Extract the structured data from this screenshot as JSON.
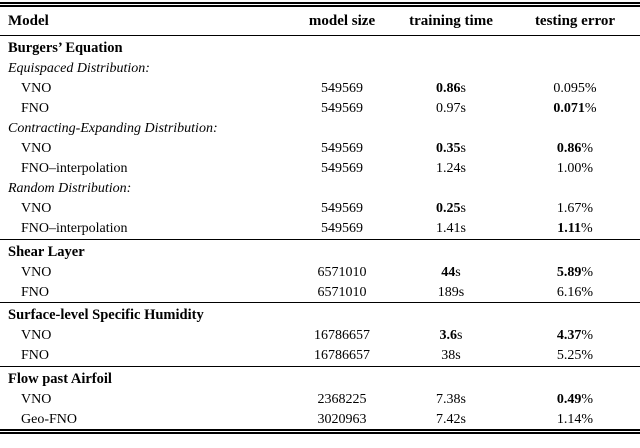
{
  "header": {
    "model": "Model",
    "size": "model size",
    "time": "training time",
    "error": "testing error"
  },
  "rows": [
    {
      "type": "section",
      "label": "Burgers’ Equation"
    },
    {
      "type": "subsection",
      "label": "Equispaced Distribution:"
    },
    {
      "type": "data",
      "model": "VNO",
      "size": "549569",
      "time": "0.86",
      "time_unit": "s",
      "time_bold": true,
      "err": "0.095",
      "err_unit": "%",
      "err_bold": false
    },
    {
      "type": "data",
      "model": "FNO",
      "size": "549569",
      "time": "0.97",
      "time_unit": "s",
      "time_bold": false,
      "err": "0.071",
      "err_unit": "%",
      "err_bold": true
    },
    {
      "type": "subsection",
      "label": "Contracting-Expanding Distribution:"
    },
    {
      "type": "data",
      "model": "VNO",
      "size": "549569",
      "time": "0.35",
      "time_unit": "s",
      "time_bold": true,
      "err": "0.86",
      "err_unit": "%",
      "err_bold": true
    },
    {
      "type": "data",
      "model": "FNO–interpolation",
      "size": "549569",
      "time": "1.24",
      "time_unit": "s",
      "time_bold": false,
      "err": "1.00",
      "err_unit": "%",
      "err_bold": false
    },
    {
      "type": "subsection",
      "label": "Random Distribution:"
    },
    {
      "type": "data",
      "model": "VNO",
      "size": "549569",
      "time": "0.25",
      "time_unit": "s",
      "time_bold": true,
      "err": "1.67",
      "err_unit": "%",
      "err_bold": false
    },
    {
      "type": "data",
      "model": "FNO–interpolation",
      "size": "549569",
      "time": "1.41",
      "time_unit": "s",
      "time_bold": false,
      "err": "1.11",
      "err_unit": "%",
      "err_bold": true
    },
    {
      "type": "section",
      "label": "Shear Layer"
    },
    {
      "type": "data",
      "model": "VNO",
      "size": "6571010",
      "time": "44",
      "time_unit": "s",
      "time_bold": true,
      "err": "5.89",
      "err_unit": "%",
      "err_bold": true
    },
    {
      "type": "data",
      "model": "FNO",
      "size": "6571010",
      "time": "189",
      "time_unit": "s",
      "time_bold": false,
      "err": "6.16",
      "err_unit": "%",
      "err_bold": false
    },
    {
      "type": "section",
      "label": "Surface-level Specific Humidity"
    },
    {
      "type": "data",
      "model": "VNO",
      "size": "16786657",
      "time": "3.6",
      "time_unit": "s",
      "time_bold": true,
      "err": "4.37",
      "err_unit": "%",
      "err_bold": true
    },
    {
      "type": "data",
      "model": "FNO",
      "size": "16786657",
      "time": "38",
      "time_unit": "s",
      "time_bold": false,
      "err": "5.25",
      "err_unit": "%",
      "err_bold": false
    },
    {
      "type": "section",
      "label": "Flow past Airfoil"
    },
    {
      "type": "data",
      "model": "VNO",
      "size": "2368225",
      "time": "7.38",
      "time_unit": "s",
      "time_bold": false,
      "err": "0.49",
      "err_unit": "%",
      "err_bold": true
    },
    {
      "type": "data",
      "model": "Geo-FNO",
      "size": "3020963",
      "time": "7.42",
      "time_unit": "s",
      "time_bold": false,
      "err": "1.14",
      "err_unit": "%",
      "err_bold": false
    }
  ]
}
